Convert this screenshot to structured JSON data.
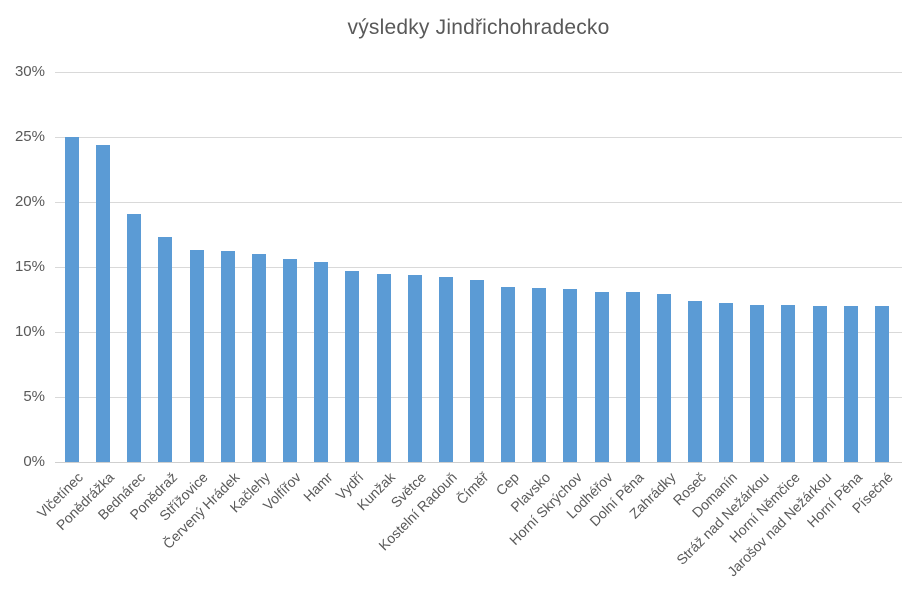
{
  "chart_data": {
    "type": "bar",
    "title": "výsledky Jindřichohradecko",
    "categories": [
      "Vlčetínec",
      "Ponědrážka",
      "Bednárec",
      "Ponědraž",
      "Střížovice",
      "Červený Hrádek",
      "Kačlehy",
      "Volfířov",
      "Hamr",
      "Vydří",
      "Kunžak",
      "Světce",
      "Kostelní Radouň",
      "Číměř",
      "Cep",
      "Plavsko",
      "Horní Skrýchov",
      "Lodhéřov",
      "Dolní Pěna",
      "Zahrádky",
      "Roseč",
      "Domanín",
      "Stráž nad Nežárkou",
      "Horní Němčice",
      "Jarošov nad Nežárkou",
      "Horní Pěna",
      "Písečné"
    ],
    "values": [
      25.0,
      24.4,
      19.1,
      17.3,
      16.3,
      16.2,
      16.0,
      15.6,
      15.4,
      14.7,
      14.5,
      14.4,
      14.2,
      14.0,
      13.5,
      13.4,
      13.3,
      13.1,
      13.1,
      12.9,
      12.4,
      12.2,
      12.1,
      12.1,
      12.0,
      12.0,
      12.0
    ],
    "xlabel": "",
    "ylabel": "",
    "ylim": [
      0,
      30
    ],
    "yticks": [
      0,
      5,
      10,
      15,
      20,
      25,
      30
    ],
    "ytick_suffix": "%",
    "grid": true,
    "legend": "none",
    "colors": {
      "bar": "#5b9bd5",
      "gridline": "#d9d9d9",
      "text": "#595959",
      "background": "#ffffff"
    }
  }
}
